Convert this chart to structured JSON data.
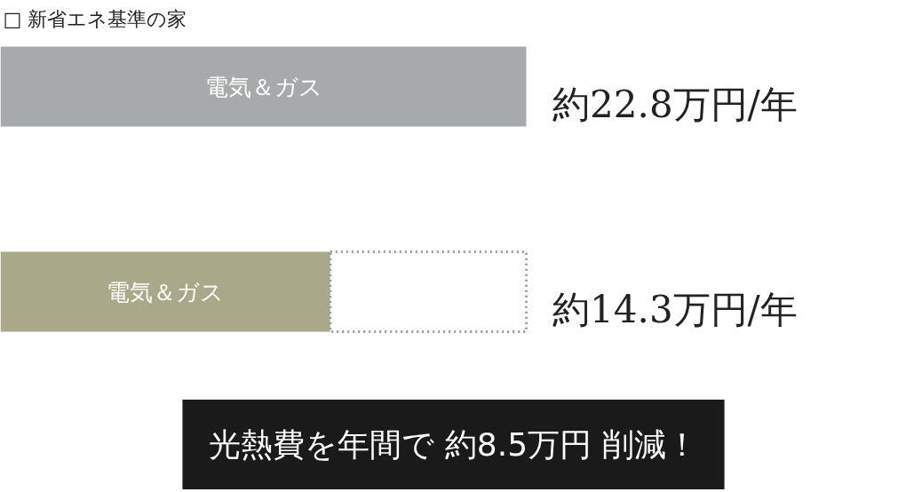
{
  "chart_data": {
    "type": "bar",
    "orientation": "horizontal",
    "stacked": true,
    "tick_labels": "y",
    "categories": [
      "□ 新省エネ基準の家",
      null
    ],
    "series": [
      {
        "name": "電気＆ガス",
        "colors": [
          "#a7aaab",
          "#a9a98a"
        ],
        "values": [
          22.8,
          14.3
        ],
        "value_labels": [
          "約22.8万円/年",
          "約14.3万円/年"
        ]
      },
      {
        "color": "#ffffff",
        "line_style": "dotted",
        "values": [
          null,
          8.5
        ]
      }
    ],
    "annotations": [
      "光熱費を年間で 約8.5万円 削減！"
    ],
    "grid": false
  }
}
